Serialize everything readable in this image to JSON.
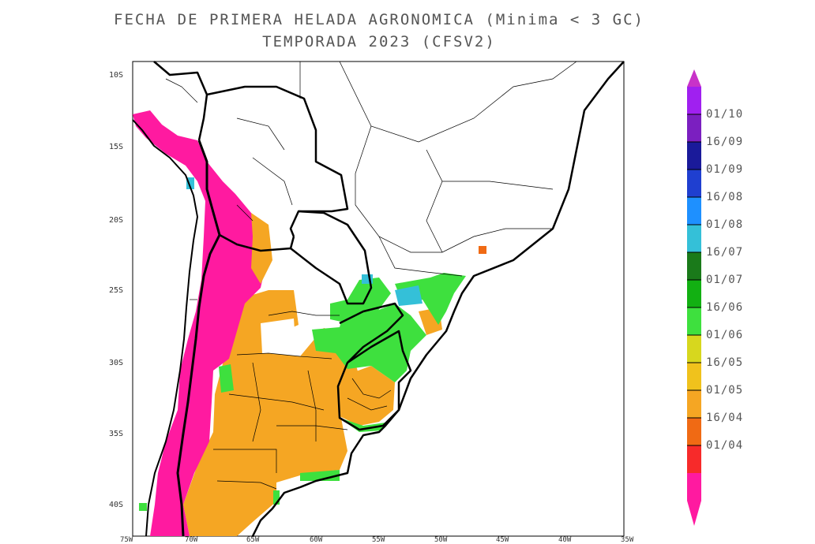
{
  "title": "FECHA DE PRIMERA HELADA AGRONOMICA (Minima < 3 GC)",
  "subtitle": "TEMPORADA 2023 (CFSV2)",
  "lat_labels": [
    "10S",
    "15S",
    "20S",
    "25S",
    "30S",
    "35S",
    "40S"
  ],
  "lon_labels": [
    "75W",
    "70W",
    "65W",
    "60W",
    "55W",
    "50W",
    "45W",
    "40W",
    "35W"
  ],
  "legend": {
    "labels": [
      "01/10",
      "16/09",
      "01/09",
      "16/08",
      "01/08",
      "16/07",
      "01/07",
      "16/06",
      "01/06",
      "16/05",
      "01/05",
      "16/04",
      "01/04"
    ],
    "colors": [
      "#a020f0",
      "#7b1fc0",
      "#1a1a9a",
      "#1f3fd0",
      "#1e90ff",
      "#34c0d8",
      "#1a7a1a",
      "#12b012",
      "#3ee03e",
      "#d7d71e",
      "#f0c21c",
      "#f5a623",
      "#f06a14",
      "#f72a2a",
      "#ff1aa0"
    ],
    "max_color": "#c832c8",
    "min_color": "#ff1aa0"
  },
  "map_colors": {
    "ocean": "#ffffff",
    "pink": "#ff1aa0",
    "orange": "#f5a623",
    "green": "#3ee03e",
    "cyan": "#34c0d8",
    "border": "#000000"
  }
}
